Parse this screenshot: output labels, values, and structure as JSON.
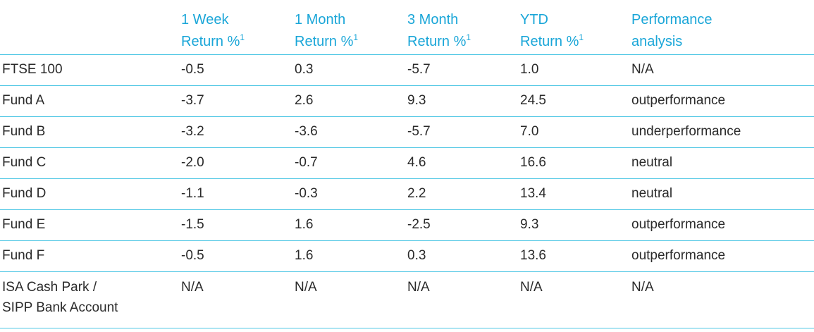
{
  "headers": [
    {
      "line1": "",
      "line2": "",
      "sup": ""
    },
    {
      "line1": "1 Week",
      "line2": "Return %",
      "sup": "1"
    },
    {
      "line1": "1 Month",
      "line2": "Return %",
      "sup": "1"
    },
    {
      "line1": "3 Month",
      "line2": "Return %",
      "sup": "1"
    },
    {
      "line1": "YTD",
      "line2": "Return %",
      "sup": "1"
    },
    {
      "line1": "Performance",
      "line2": "analysis",
      "sup": ""
    }
  ],
  "rows": [
    [
      "FTSE 100",
      "-0.5",
      "0.3",
      "-5.7",
      "1.0",
      "N/A"
    ],
    [
      "Fund A",
      "-3.7",
      "2.6",
      "9.3",
      "24.5",
      "outperformance"
    ],
    [
      "Fund B",
      "-3.2",
      "-3.6",
      "-5.7",
      "7.0",
      "underperformance"
    ],
    [
      "Fund C",
      "-2.0",
      "-0.7",
      "4.6",
      "16.6",
      "neutral"
    ],
    [
      "Fund D",
      "-1.1",
      "-0.3",
      "2.2",
      "13.4",
      "neutral"
    ],
    [
      "Fund E",
      "-1.5",
      "1.6",
      "-2.5",
      "9.3",
      "outperformance"
    ],
    [
      "Fund F",
      "-0.5",
      "1.6",
      "0.3",
      "13.6",
      "outperformance"
    ]
  ],
  "last_row": {
    "name_line1": "ISA Cash Park /",
    "name_line2": "SIPP Bank Account",
    "values": [
      "N/A",
      "N/A",
      "N/A",
      "N/A",
      "N/A"
    ]
  }
}
